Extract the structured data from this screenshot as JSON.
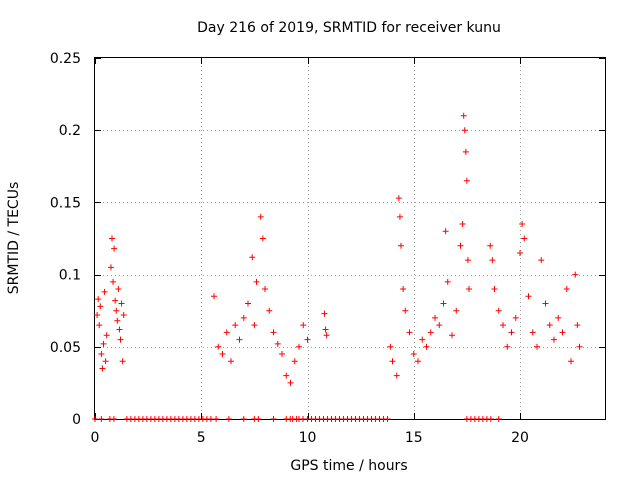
{
  "chart_data": {
    "type": "scatter",
    "title": "Day 216 of 2019, SRMTID for receiver kunu",
    "xlabel": "GPS time / hours",
    "ylabel": "SRMTID / TECUs",
    "xlim": [
      0,
      24
    ],
    "ylim": [
      0,
      0.25
    ],
    "xticks": [
      0,
      5,
      10,
      15,
      20
    ],
    "xtick_labels": [
      "0",
      "5",
      "10",
      "15",
      "20"
    ],
    "yticks": [
      0,
      0.05,
      0.1,
      0.15,
      0.2,
      0.25
    ],
    "ytick_labels": [
      "0",
      "0.05",
      "0.1",
      "0.15",
      "0.2",
      "0.25"
    ],
    "grid": true,
    "marker": "+",
    "color": "#ff0000",
    "series": [
      {
        "name": "SRMTID",
        "points": [
          [
            0.1,
            0.072
          ],
          [
            0.15,
            0.083
          ],
          [
            0.2,
            0.065
          ],
          [
            0.25,
            0.078
          ],
          [
            0.3,
            0.045
          ],
          [
            0.35,
            0.035
          ],
          [
            0.4,
            0.052
          ],
          [
            0.45,
            0.088
          ],
          [
            0.5,
            0.04
          ],
          [
            0.55,
            0.058
          ],
          [
            0.75,
            0.105
          ],
          [
            0.8,
            0.125
          ],
          [
            0.85,
            0.095
          ],
          [
            0.9,
            0.118
          ],
          [
            0.95,
            0.082
          ],
          [
            1.0,
            0.075
          ],
          [
            1.05,
            0.068
          ],
          [
            1.1,
            0.09
          ],
          [
            1.15,
            0.062
          ],
          [
            1.2,
            0.055
          ],
          [
            1.25,
            0.08
          ],
          [
            1.3,
            0.04
          ],
          [
            1.35,
            0.072
          ],
          [
            5.6,
            0.085
          ],
          [
            5.8,
            0.05
          ],
          [
            6.0,
            0.045
          ],
          [
            6.2,
            0.06
          ],
          [
            6.4,
            0.04
          ],
          [
            6.6,
            0.065
          ],
          [
            6.8,
            0.055
          ],
          [
            7.0,
            0.07
          ],
          [
            7.2,
            0.08
          ],
          [
            7.4,
            0.112
          ],
          [
            7.5,
            0.065
          ],
          [
            7.6,
            0.095
          ],
          [
            7.8,
            0.14
          ],
          [
            7.9,
            0.125
          ],
          [
            8.0,
            0.09
          ],
          [
            8.2,
            0.075
          ],
          [
            8.4,
            0.06
          ],
          [
            8.6,
            0.052
          ],
          [
            8.8,
            0.045
          ],
          [
            9.0,
            0.03
          ],
          [
            9.2,
            0.025
          ],
          [
            9.4,
            0.04
          ],
          [
            9.6,
            0.05
          ],
          [
            9.8,
            0.065
          ],
          [
            10.0,
            0.055
          ],
          [
            10.8,
            0.073
          ],
          [
            10.85,
            0.062
          ],
          [
            10.9,
            0.058
          ],
          [
            13.9,
            0.05
          ],
          [
            14.0,
            0.04
          ],
          [
            14.2,
            0.03
          ],
          [
            14.3,
            0.153
          ],
          [
            14.35,
            0.14
          ],
          [
            14.4,
            0.12
          ],
          [
            14.5,
            0.09
          ],
          [
            14.6,
            0.075
          ],
          [
            14.8,
            0.06
          ],
          [
            15.0,
            0.045
          ],
          [
            15.2,
            0.04
          ],
          [
            15.4,
            0.055
          ],
          [
            15.6,
            0.05
          ],
          [
            15.8,
            0.06
          ],
          [
            16.0,
            0.07
          ],
          [
            16.2,
            0.065
          ],
          [
            16.4,
            0.08
          ],
          [
            16.5,
            0.13
          ],
          [
            16.6,
            0.095
          ],
          [
            16.8,
            0.058
          ],
          [
            17.0,
            0.075
          ],
          [
            17.2,
            0.12
          ],
          [
            17.3,
            0.135
          ],
          [
            17.35,
            0.21
          ],
          [
            17.4,
            0.2
          ],
          [
            17.45,
            0.185
          ],
          [
            17.5,
            0.165
          ],
          [
            17.55,
            0.11
          ],
          [
            17.6,
            0.09
          ],
          [
            18.6,
            0.12
          ],
          [
            18.7,
            0.11
          ],
          [
            18.8,
            0.09
          ],
          [
            19.0,
            0.075
          ],
          [
            19.2,
            0.065
          ],
          [
            19.4,
            0.05
          ],
          [
            19.6,
            0.06
          ],
          [
            19.8,
            0.07
          ],
          [
            20.0,
            0.115
          ],
          [
            20.1,
            0.135
          ],
          [
            20.2,
            0.125
          ],
          [
            20.4,
            0.085
          ],
          [
            20.6,
            0.06
          ],
          [
            20.8,
            0.05
          ],
          [
            21.0,
            0.11
          ],
          [
            21.2,
            0.08
          ],
          [
            21.4,
            0.065
          ],
          [
            21.6,
            0.055
          ],
          [
            21.8,
            0.07
          ],
          [
            22.0,
            0.06
          ],
          [
            22.2,
            0.09
          ],
          [
            22.4,
            0.04
          ],
          [
            22.6,
            0.1
          ],
          [
            22.7,
            0.065
          ],
          [
            22.8,
            0.05
          ]
        ],
        "zero_segments": [
          [
            0.0,
            0.15
          ],
          [
            0.3,
            0.45
          ],
          [
            0.7,
            0.9
          ],
          [
            1.5,
            5.5
          ],
          [
            5.7,
            5.8
          ],
          [
            6.3,
            6.4
          ],
          [
            7.0,
            7.1
          ],
          [
            7.5,
            7.7
          ],
          [
            8.4,
            8.5
          ],
          [
            9.0,
            9.2
          ],
          [
            9.3,
            9.5
          ],
          [
            9.6,
            9.8
          ],
          [
            10.0,
            13.95
          ],
          [
            17.5,
            18.7
          ],
          [
            19.0,
            19.1
          ]
        ]
      }
    ]
  }
}
